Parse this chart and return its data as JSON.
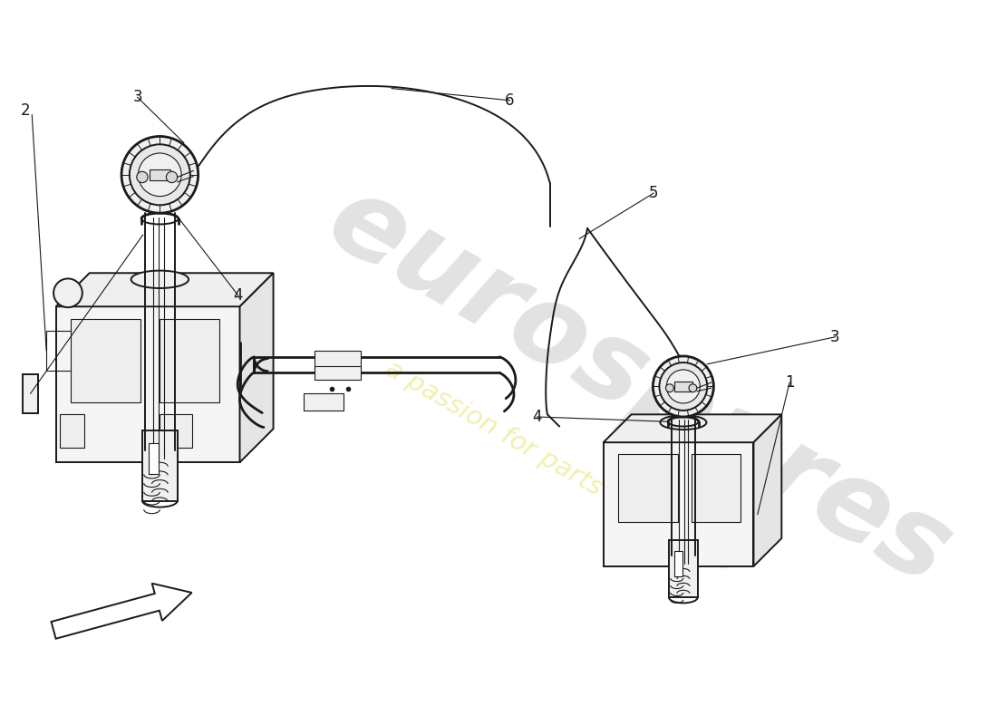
{
  "bg_color": "#ffffff",
  "lc": "#1a1a1a",
  "lw0": 0.8,
  "lw1": 1.4,
  "lw2": 2.0,
  "wm1": "#e2e2e2",
  "wm2": "#f0f0b0",
  "figsize": [
    11.0,
    8.0
  ],
  "dpi": 100
}
